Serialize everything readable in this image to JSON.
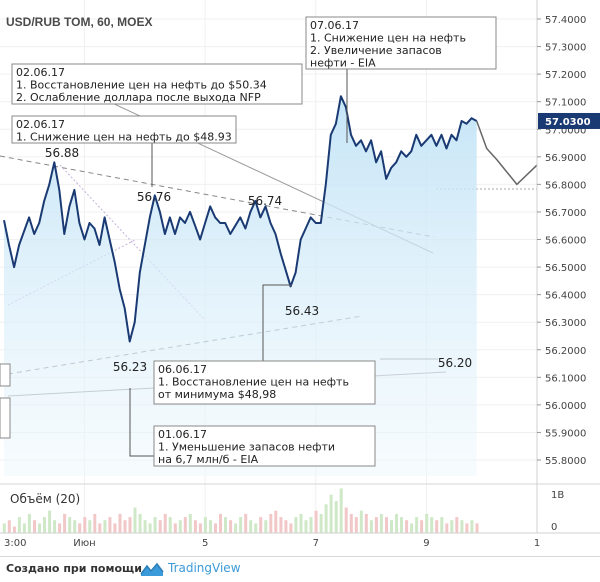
{
  "chart_data": {
    "type": "line",
    "title": "USD/RUB TOM, 60, MOEX",
    "y_axis": {
      "min": 55.8,
      "max": 57.4,
      "ticks": [
        "57.4000",
        "57.3000",
        "57.2000",
        "57.1000",
        "57.0000",
        "56.9000",
        "56.8000",
        "56.7000",
        "56.6000",
        "56.5000",
        "56.4000",
        "56.3000",
        "56.2000",
        "56.1000",
        "56.0000",
        "55.9000",
        "55.8000"
      ]
    },
    "x_axis": {
      "ticks": [
        {
          "label": "3:00",
          "x": 0
        },
        {
          "label": "Июн",
          "x": 16
        },
        {
          "label": "5",
          "x": 40
        },
        {
          "label": "7",
          "x": 62
        },
        {
          "label": "9",
          "x": 84
        },
        {
          "label": "1",
          "x": 106
        }
      ]
    },
    "last_price": "57.0300",
    "series": [
      {
        "values": [
          [
            0,
            56.67
          ],
          [
            1,
            56.58
          ],
          [
            2,
            56.5
          ],
          [
            3,
            56.58
          ],
          [
            4,
            56.63
          ],
          [
            5,
            56.68
          ],
          [
            6,
            56.62
          ],
          [
            7,
            56.66
          ],
          [
            8,
            56.74
          ],
          [
            9,
            56.8
          ],
          [
            10,
            56.88
          ],
          [
            11,
            56.78
          ],
          [
            12,
            56.62
          ],
          [
            13,
            56.72
          ],
          [
            14,
            56.78
          ],
          [
            15,
            56.66
          ],
          [
            16,
            56.6
          ],
          [
            17,
            56.66
          ],
          [
            18,
            56.64
          ],
          [
            19,
            56.58
          ],
          [
            20,
            56.68
          ],
          [
            21,
            56.6
          ],
          [
            22,
            56.52
          ],
          [
            23,
            56.42
          ],
          [
            24,
            56.35
          ],
          [
            25,
            56.23
          ],
          [
            26,
            56.3
          ],
          [
            27,
            56.48
          ],
          [
            28,
            56.58
          ],
          [
            29,
            56.68
          ],
          [
            30,
            56.76
          ],
          [
            31,
            56.7
          ],
          [
            32,
            56.62
          ],
          [
            33,
            56.68
          ],
          [
            34,
            56.62
          ],
          [
            35,
            56.68
          ],
          [
            36,
            56.66
          ],
          [
            37,
            56.7
          ],
          [
            38,
            56.65
          ],
          [
            39,
            56.6
          ],
          [
            40,
            56.66
          ],
          [
            41,
            56.72
          ],
          [
            42,
            56.68
          ],
          [
            43,
            56.66
          ],
          [
            44,
            56.66
          ],
          [
            45,
            56.62
          ],
          [
            46,
            56.65
          ],
          [
            47,
            56.68
          ],
          [
            48,
            56.64
          ],
          [
            49,
            56.7
          ],
          [
            50,
            56.74
          ],
          [
            51,
            56.68
          ],
          [
            52,
            56.72
          ],
          [
            53,
            56.66
          ],
          [
            54,
            56.62
          ],
          [
            55,
            56.55
          ],
          [
            56,
            56.49
          ],
          [
            57,
            56.43
          ],
          [
            58,
            56.48
          ],
          [
            59,
            56.6
          ],
          [
            60,
            56.64
          ],
          [
            61,
            56.68
          ],
          [
            62,
            56.66
          ],
          [
            63,
            56.66
          ],
          [
            64,
            56.8
          ],
          [
            65,
            56.98
          ],
          [
            66,
            57.02
          ],
          [
            67,
            57.12
          ],
          [
            68,
            57.08
          ],
          [
            69,
            56.98
          ],
          [
            70,
            56.94
          ],
          [
            71,
            56.96
          ],
          [
            72,
            56.92
          ],
          [
            73,
            56.96
          ],
          [
            74,
            56.88
          ],
          [
            75,
            56.92
          ],
          [
            76,
            56.82
          ],
          [
            77,
            56.86
          ],
          [
            78,
            56.88
          ],
          [
            79,
            56.92
          ],
          [
            80,
            56.9
          ],
          [
            81,
            56.92
          ],
          [
            82,
            56.98
          ],
          [
            83,
            56.94
          ],
          [
            84,
            56.96
          ],
          [
            85,
            56.98
          ],
          [
            86,
            56.94
          ],
          [
            87,
            56.98
          ],
          [
            88,
            56.93
          ],
          [
            89,
            56.98
          ],
          [
            90,
            56.96
          ],
          [
            91,
            57.03
          ],
          [
            92,
            57.02
          ],
          [
            93,
            57.04
          ],
          [
            94,
            57.03
          ]
        ]
      }
    ],
    "levels": [
      {
        "label": "56.88"
      },
      {
        "label": "56.76"
      },
      {
        "label": "56.74"
      },
      {
        "label": "56.43"
      },
      {
        "label": "56.23"
      },
      {
        "label": "56.20"
      }
    ],
    "annotations": [
      {
        "lines": [
          "07.06.17",
          "1. Снижение цен на нефть",
          "2. Увеличение запасов",
          "нефти - EIA"
        ]
      },
      {
        "lines": [
          "02.06.17",
          "1. Восстановление цен на нефть до $50.34",
          "2. Ослабление доллара после выхода NFP"
        ]
      },
      {
        "lines": [
          "02.06.17",
          "1. Снижение цен на нефть до $48.93"
        ]
      },
      {
        "lines": [
          "06.06.17",
          "1. Восстановление цен на нефть",
          "от минимума $48,98"
        ]
      },
      {
        "lines": [
          "01.06.17",
          "1. Уменьшение запасов нефти",
          "на 6,7 млн/б - EIA"
        ]
      }
    ],
    "volume": {
      "label": "Объём (20)",
      "axis_label": "1B",
      "axis_zero": "0",
      "values": [
        3,
        4,
        2,
        5,
        3,
        6,
        4,
        3,
        5,
        7,
        4,
        3,
        6,
        5,
        4,
        3,
        5,
        4,
        6,
        3,
        4,
        5,
        3,
        6,
        4,
        5,
        8,
        6,
        4,
        3,
        5,
        4,
        6,
        5,
        3,
        4,
        5,
        6,
        4,
        3,
        5,
        4,
        3,
        6,
        5,
        4,
        3,
        5,
        6,
        4,
        3,
        5,
        4,
        6,
        7,
        5,
        4,
        3,
        5,
        6,
        4,
        5,
        7,
        6,
        9,
        12,
        10,
        14,
        8,
        6,
        5,
        7,
        6,
        4,
        5,
        6,
        5,
        4,
        6,
        5,
        4,
        3,
        5,
        4,
        6,
        5,
        4,
        5,
        3,
        4,
        5,
        4,
        3,
        4,
        3
      ]
    },
    "grid": true
  },
  "footer": {
    "text": "Создано при помощи",
    "brand": "TradingView"
  }
}
